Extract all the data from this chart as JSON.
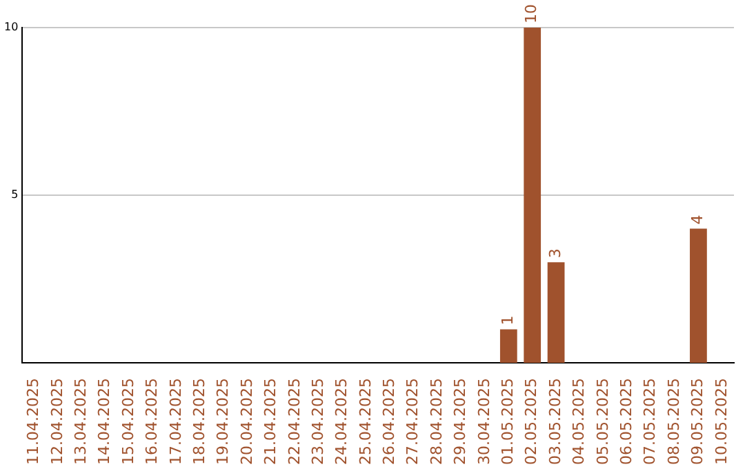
{
  "chart_data": {
    "type": "bar",
    "categories": [
      "11.04.2025",
      "12.04.2025",
      "13.04.2025",
      "14.04.2025",
      "15.04.2025",
      "16.04.2025",
      "17.04.2025",
      "18.04.2025",
      "19.04.2025",
      "20.04.2025",
      "21.04.2025",
      "22.04.2025",
      "23.04.2025",
      "24.04.2025",
      "25.04.2025",
      "26.04.2025",
      "27.04.2025",
      "28.04.2025",
      "29.04.2025",
      "30.04.2025",
      "01.05.2025",
      "02.05.2025",
      "03.05.2025",
      "04.05.2025",
      "05.05.2025",
      "06.05.2025",
      "07.05.2025",
      "08.05.2025",
      "09.05.2025",
      "10.05.2025"
    ],
    "values": [
      0,
      0,
      0,
      0,
      0,
      0,
      0,
      0,
      0,
      0,
      0,
      0,
      0,
      0,
      0,
      0,
      0,
      0,
      0,
      0,
      1,
      10,
      3,
      0,
      0,
      0,
      0,
      0,
      4,
      0
    ],
    "value_labels": [
      null,
      null,
      null,
      null,
      null,
      null,
      null,
      null,
      null,
      null,
      null,
      null,
      null,
      null,
      null,
      null,
      null,
      null,
      null,
      null,
      "1",
      "10",
      "3",
      null,
      null,
      null,
      null,
      null,
      "4",
      null
    ],
    "color": "#a0522d",
    "ylim": [
      0,
      10
    ],
    "yticks": [
      5,
      10
    ],
    "grid": "y",
    "legend": false
  }
}
